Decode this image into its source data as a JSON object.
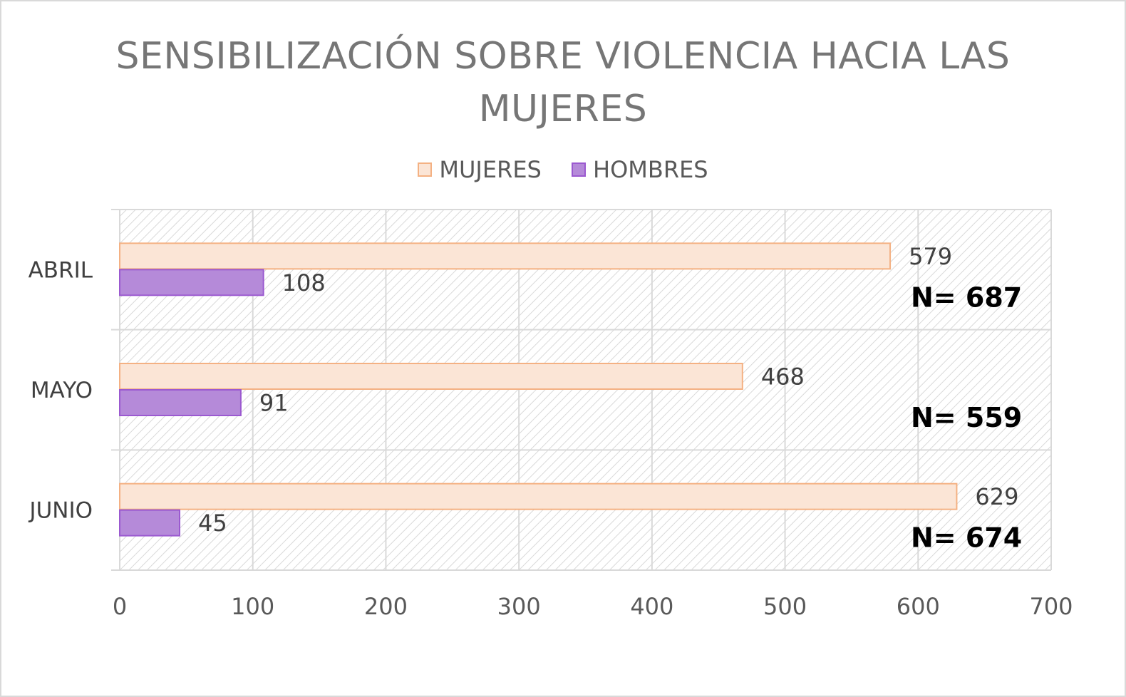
{
  "chart_data": {
    "type": "bar",
    "orientation": "horizontal",
    "title": "SENSIBILIZACIÓN SOBRE VIOLENCIA HACIA LAS MUJERES",
    "title_lines": [
      "SENSIBILIZACIÓN SOBRE VIOLENCIA HACIA LAS",
      "MUJERES"
    ],
    "categories": [
      "ABRIL",
      "MAYO",
      "JUNIO"
    ],
    "series": [
      {
        "name": "MUJERES",
        "values": [
          579,
          468,
          629
        ],
        "fill": "#fbe5d6",
        "stroke": "#f4b183"
      },
      {
        "name": "HOMBRES",
        "values": [
          108,
          91,
          45
        ],
        "fill": "#b58ad9",
        "stroke": "#9b59d0"
      }
    ],
    "totals": [
      "N= 687",
      "N= 559",
      "N= 674"
    ],
    "xlim": [
      0,
      700
    ],
    "xticks": [
      0,
      100,
      200,
      300,
      400,
      500,
      600,
      700
    ],
    "grid": true,
    "plot_background": "hatched",
    "legend_position": "top",
    "xlabel": "",
    "ylabel": ""
  }
}
